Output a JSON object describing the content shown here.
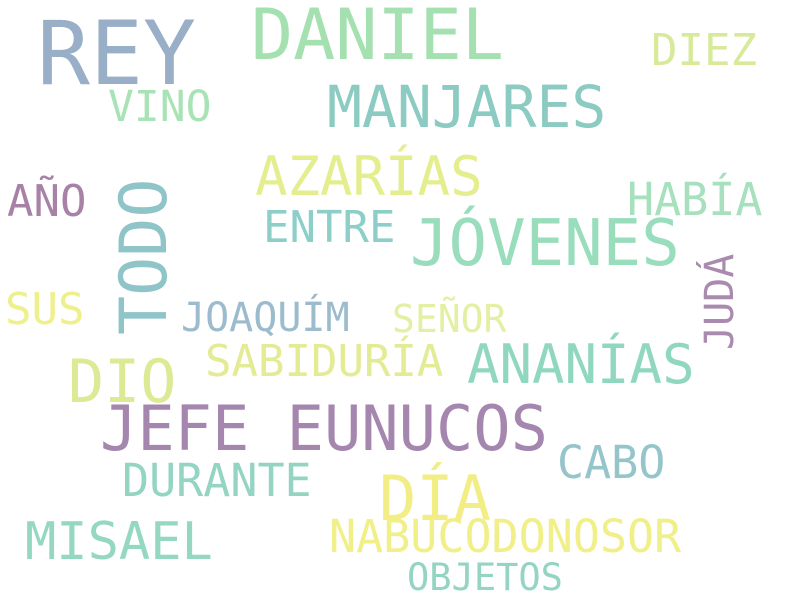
{
  "words": {
    "rey": {
      "text": "REY",
      "color": "#98afc7"
    },
    "daniel": {
      "text": "DANIEL",
      "color": "#a5e0b0"
    },
    "diez": {
      "text": "DIEZ",
      "color": "#d7ea9a"
    },
    "vino": {
      "text": "VINO",
      "color": "#a8e3b6"
    },
    "manjares": {
      "text": "MANJARES",
      "color": "#8ccbc2"
    },
    "azarias": {
      "text": "AZARÍAS",
      "color": "#e5ee8e"
    },
    "ano": {
      "text": "AÑO",
      "color": "#a882a6"
    },
    "todo": {
      "text": "TODO",
      "color": "#8fc4c8"
    },
    "habia": {
      "text": "HABÍA",
      "color": "#a6e0bc"
    },
    "entre": {
      "text": "ENTRE",
      "color": "#8ccfc8"
    },
    "jovenes": {
      "text": "JÓVENES",
      "color": "#99ddbd"
    },
    "juda": {
      "text": "JUDÁ",
      "color": "#a98bb0"
    },
    "sus": {
      "text": "SUS",
      "color": "#eef08c"
    },
    "joaquim": {
      "text": "JOAQUÍM",
      "color": "#9cbccd"
    },
    "senor": {
      "text": "SEÑOR",
      "color": "#e4efa4"
    },
    "dio": {
      "text": "DIO",
      "color": "#dcea94"
    },
    "sabiduria": {
      "text": "SABIDURÍA",
      "color": "#e3eb94"
    },
    "ananias": {
      "text": "ANANÍAS",
      "color": "#90d7bf"
    },
    "jefe_eunucos": {
      "text": "JEFE EUNUCOS",
      "color": "#a486ae"
    },
    "cabo": {
      "text": "CABO",
      "color": "#95c5cb"
    },
    "durante": {
      "text": "DURANTE",
      "color": "#94d4c3"
    },
    "dia": {
      "text": "DÍA",
      "color": "#f2ee85"
    },
    "misael": {
      "text": "MISAEL",
      "color": "#95d8c1"
    },
    "nabucodonosor": {
      "text": "NABUCODONOSOR",
      "color": "#f1ef88"
    },
    "objetos": {
      "text": "OBJETOS",
      "color": "#94d4c3"
    }
  }
}
